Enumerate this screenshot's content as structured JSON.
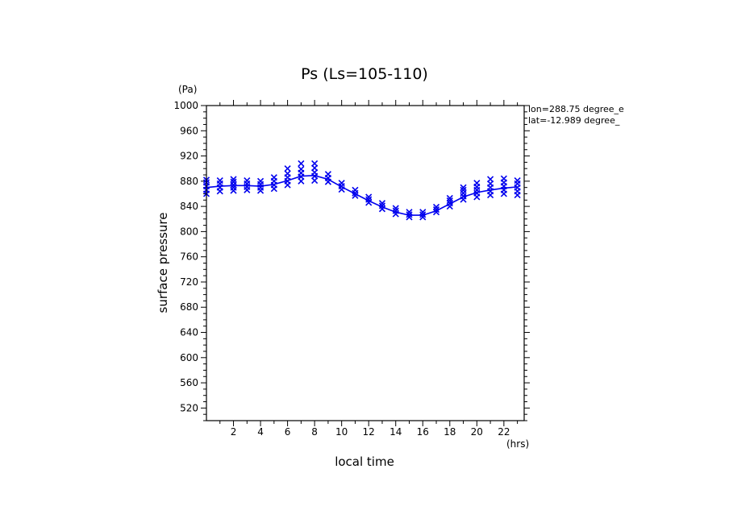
{
  "chart_data": {
    "type": "scatter",
    "title": "Ps (Ls=105-110)",
    "xlabel": "local time",
    "ylabel": "surface pressure",
    "x_unit": "(hrs)",
    "y_unit": "(Pa)",
    "xlim": [
      0,
      23.5
    ],
    "ylim": [
      500,
      1000
    ],
    "x_ticks": [
      2,
      4,
      6,
      8,
      10,
      12,
      14,
      16,
      18,
      20,
      22
    ],
    "y_ticks": [
      520,
      560,
      600,
      640,
      680,
      720,
      760,
      800,
      840,
      880,
      920,
      960,
      1000
    ],
    "annotations": [
      "lon=288.75 degree_e",
      "lat=-12.989 degree_"
    ],
    "colors": {
      "series": "#0000ee",
      "axes": "#000000"
    },
    "grid": false,
    "series": [
      {
        "kind": "line",
        "x": [
          0,
          1,
          2,
          3,
          4,
          5,
          6,
          7,
          8,
          9,
          10,
          11,
          12,
          13,
          14,
          15,
          16,
          17,
          18,
          19,
          20,
          21,
          22,
          23
        ],
        "y": [
          870,
          872,
          873,
          873,
          872,
          875,
          881,
          888,
          889,
          883,
          871,
          860,
          849,
          839,
          831,
          826,
          826,
          833,
          844,
          855,
          862,
          866,
          869,
          871
        ]
      },
      {
        "kind": "scatter",
        "marker": "x",
        "x": [
          0,
          0,
          0,
          0,
          0,
          1,
          1,
          1,
          1,
          2,
          2,
          2,
          2,
          2,
          3,
          3,
          3,
          3,
          4,
          4,
          4,
          4,
          5,
          5,
          5,
          5,
          6,
          6,
          6,
          6,
          6,
          7,
          7,
          7,
          7,
          7,
          8,
          8,
          8,
          8,
          8,
          9,
          9,
          9,
          10,
          10,
          10,
          11,
          11,
          11,
          12,
          12,
          12,
          13,
          13,
          13,
          14,
          14,
          14,
          15,
          15,
          15,
          16,
          16,
          16,
          17,
          17,
          17,
          18,
          18,
          18,
          18,
          19,
          19,
          19,
          19,
          19,
          20,
          20,
          20,
          20,
          20,
          21,
          21,
          21,
          21,
          21,
          22,
          22,
          22,
          22,
          22,
          23,
          23,
          23,
          23,
          23
        ],
        "y": [
          860,
          866,
          872,
          878,
          882,
          864,
          870,
          876,
          881,
          865,
          870,
          874,
          879,
          883,
          866,
          871,
          876,
          881,
          865,
          870,
          875,
          880,
          868,
          874,
          880,
          886,
          874,
          880,
          886,
          892,
          900,
          880,
          887,
          893,
          899,
          908,
          881,
          888,
          894,
          901,
          908,
          879,
          885,
          891,
          867,
          872,
          877,
          857,
          861,
          866,
          846,
          851,
          855,
          836,
          841,
          845,
          828,
          833,
          837,
          823,
          827,
          831,
          823,
          827,
          831,
          831,
          835,
          839,
          840,
          845,
          849,
          853,
          851,
          856,
          861,
          866,
          870,
          855,
          861,
          866,
          871,
          877,
          858,
          864,
          870,
          876,
          883,
          860,
          866,
          872,
          878,
          884,
          858,
          864,
          870,
          876,
          881
        ]
      }
    ]
  }
}
